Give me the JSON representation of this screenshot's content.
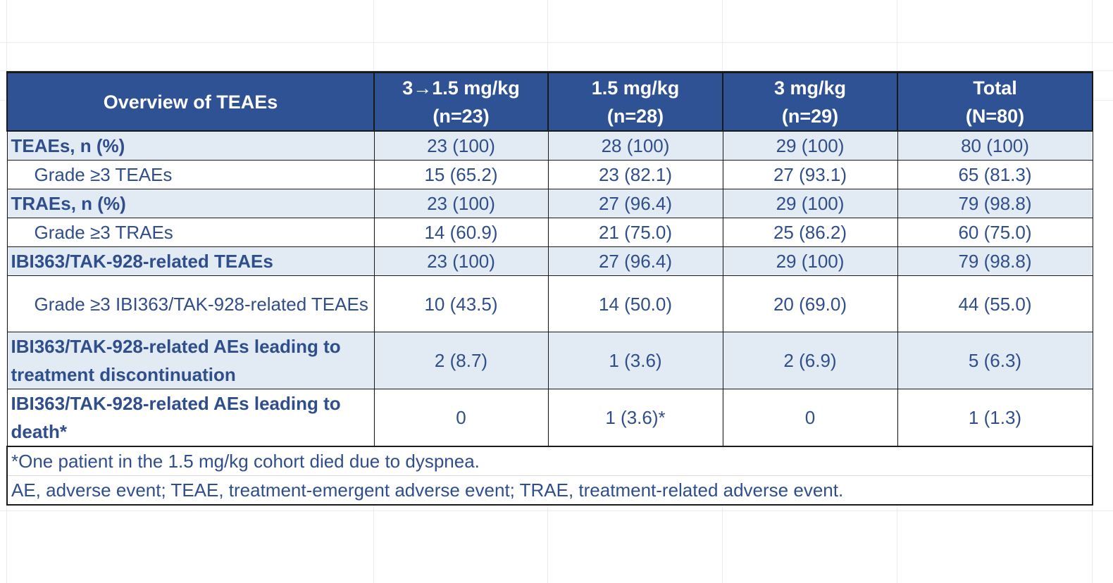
{
  "table": {
    "header": {
      "label": "Overview of TEAEs",
      "columns": [
        {
          "line1": "3→1.5 mg/kg",
          "line2": "(n=23)"
        },
        {
          "line1": "1.5 mg/kg",
          "line2": "(n=28)"
        },
        {
          "line1": "3 mg/kg",
          "line2": "(n=29)"
        },
        {
          "line1": "Total",
          "line2": "(N=80)"
        }
      ]
    },
    "rows": [
      {
        "label": "TEAEs, n (%)",
        "values": [
          "23 (100)",
          "28 (100)",
          "29 (100)",
          "80 (100)"
        ]
      },
      {
        "label": "Grade ≥3 TEAEs",
        "values": [
          "15 (65.2)",
          "23 (82.1)",
          "27 (93.1)",
          "65 (81.3)"
        ]
      },
      {
        "label": "TRAEs, n (%)",
        "values": [
          "23 (100)",
          "27 (96.4)",
          "29 (100)",
          "79 (98.8)"
        ]
      },
      {
        "label": "Grade ≥3 TRAEs",
        "values": [
          "14 (60.9)",
          "21 (75.0)",
          "25 (86.2)",
          "60 (75.0)"
        ]
      },
      {
        "label": "IBI363/TAK-928-related TEAEs",
        "values": [
          "23 (100)",
          "27 (96.4)",
          "29 (100)",
          "79 (98.8)"
        ]
      },
      {
        "label": "Grade ≥3 IBI363/TAK-928-related TEAEs",
        "values": [
          "10 (43.5)",
          "14 (50.0)",
          "20 (69.0)",
          "44 (55.0)"
        ]
      },
      {
        "label": "IBI363/TAK-928-related AEs leading to treatment discontinuation",
        "values": [
          "2 (8.7)",
          "1 (3.6)",
          "2 (6.9)",
          "5 (6.3)"
        ]
      },
      {
        "label": "IBI363/TAK-928-related AEs leading to death*",
        "values": [
          "0",
          "1 (3.6)*",
          "0",
          "1 (1.3)"
        ]
      }
    ],
    "footnotes": [
      "*One patient in the 1.5 mg/kg cohort died due to dyspnea.",
      "AE, adverse event; TEAE, treatment-emergent adverse event; TRAE, treatment-related adverse event."
    ]
  },
  "colors": {
    "header_bg": "#2e5294",
    "header_text": "#ffffff",
    "body_text": "#2f4e8c",
    "band_bg": "#e2eaf3",
    "border": "#1a1a1a"
  }
}
